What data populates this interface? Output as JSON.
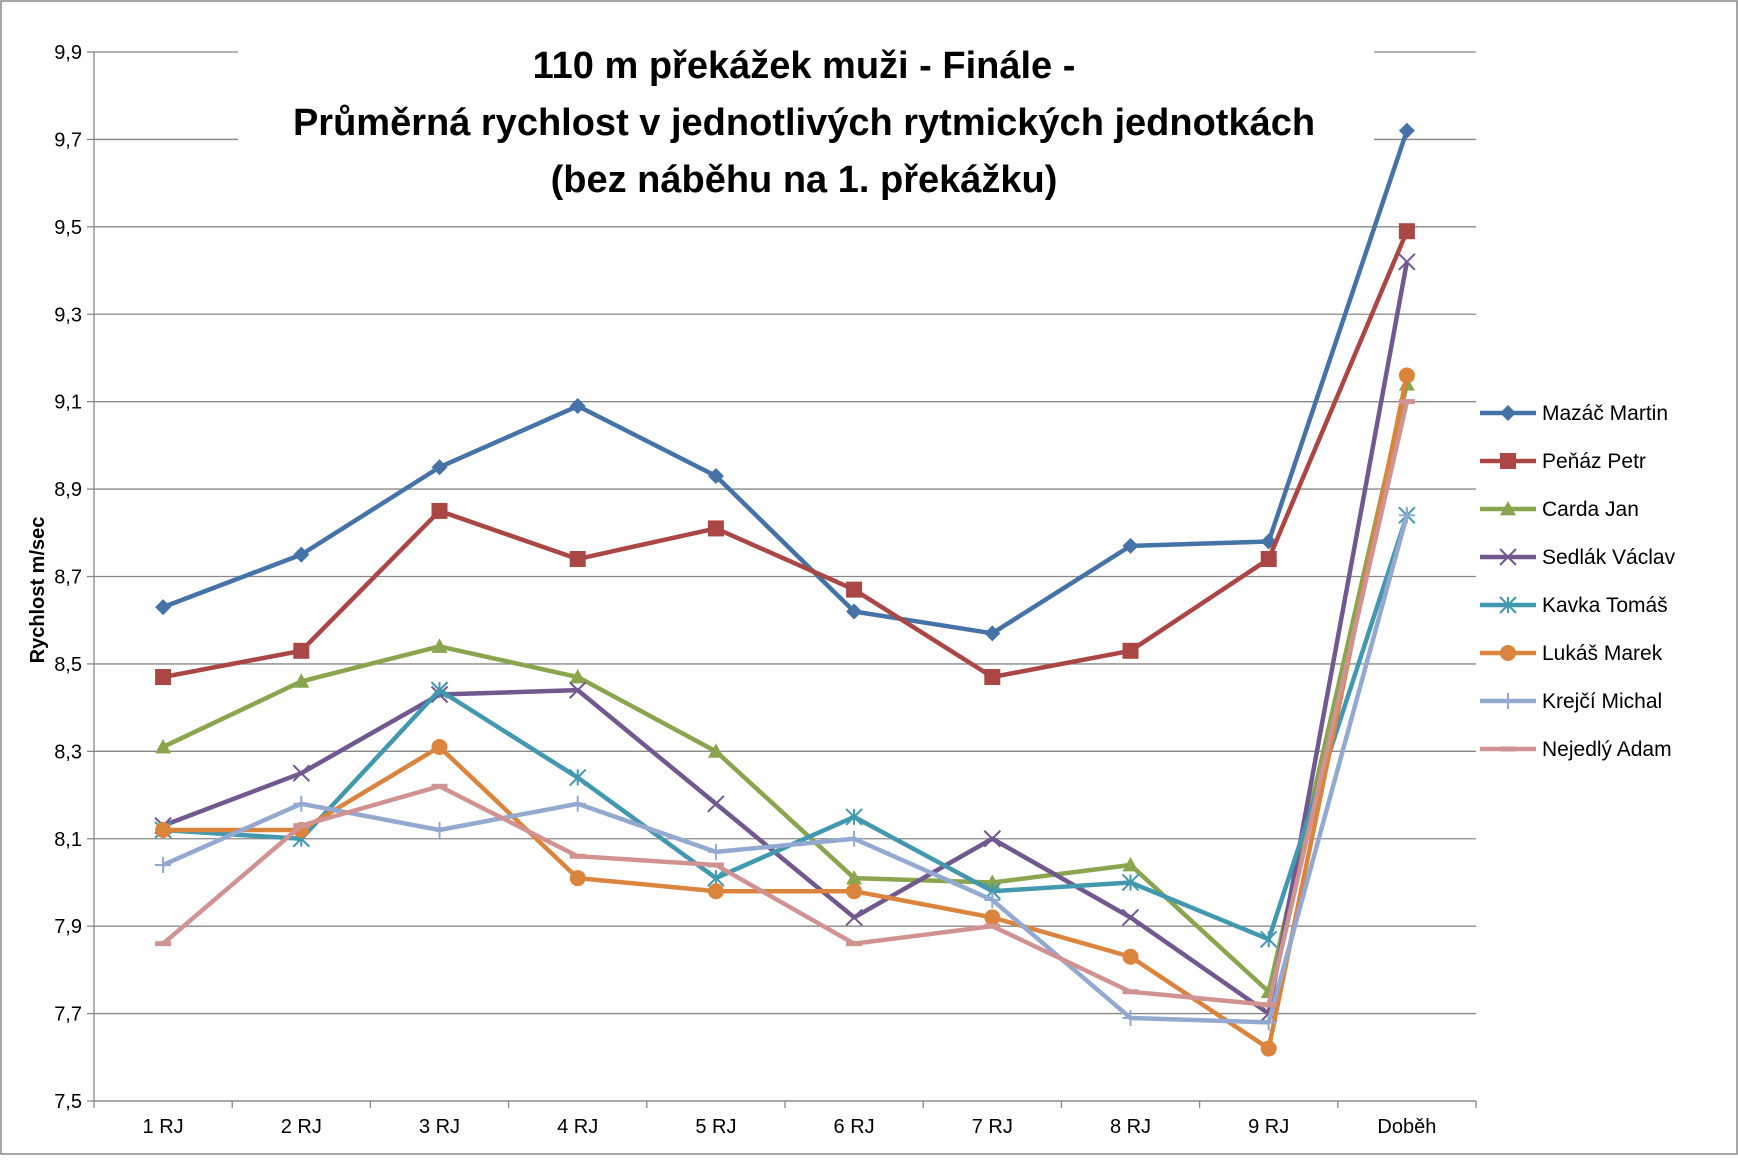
{
  "chart_data": {
    "type": "line",
    "title": [
      "110 m překážek muži - Finále -",
      "Průměrná rychlost v jednotlivých rytmických jednotkách",
      "(bez náběhu na 1. překážku)"
    ],
    "y_label": "Rychlost m/sec",
    "categories": [
      "1 RJ",
      "2 RJ",
      "3 RJ",
      "4 RJ",
      "5 RJ",
      "6 RJ",
      "7 RJ",
      "8 RJ",
      "9 RJ",
      "Doběh"
    ],
    "ylim": [
      7.5,
      9.9
    ],
    "yticks": [
      {
        "value": 7.5,
        "label": "7,5"
      },
      {
        "value": 7.7,
        "label": "7,7"
      },
      {
        "value": 7.9,
        "label": "7,9"
      },
      {
        "value": 8.1,
        "label": "8,1"
      },
      {
        "value": 8.3,
        "label": "8,3"
      },
      {
        "value": 8.5,
        "label": "8,5"
      },
      {
        "value": 8.7,
        "label": "8,7"
      },
      {
        "value": 8.9,
        "label": "8,9"
      },
      {
        "value": 9.1,
        "label": "9,1"
      },
      {
        "value": 9.3,
        "label": "9,3"
      },
      {
        "value": 9.5,
        "label": "9,5"
      },
      {
        "value": 9.7,
        "label": "9,7"
      },
      {
        "value": 9.9,
        "label": "9,9"
      }
    ],
    "grid": true,
    "legend": "right",
    "series": [
      {
        "name": "Mazáč Martin",
        "color": "#4572A7",
        "marker": "diamond",
        "values": [
          8.63,
          8.75,
          8.95,
          9.09,
          8.93,
          8.62,
          8.57,
          8.77,
          8.78,
          9.72
        ]
      },
      {
        "name": "Peňáz Petr",
        "color": "#AA4643",
        "marker": "square",
        "values": [
          8.47,
          8.53,
          8.85,
          8.74,
          8.81,
          8.67,
          8.47,
          8.53,
          8.74,
          9.49
        ]
      },
      {
        "name": "Carda Jan",
        "color": "#89A54E",
        "marker": "triangle",
        "values": [
          8.31,
          8.46,
          8.54,
          8.47,
          8.3,
          8.01,
          8.0,
          8.04,
          7.75,
          9.14
        ]
      },
      {
        "name": "Sedlák Václav",
        "color": "#71588F",
        "marker": "x",
        "values": [
          8.13,
          8.25,
          8.43,
          8.44,
          8.18,
          7.92,
          8.1,
          7.92,
          7.7,
          9.42
        ]
      },
      {
        "name": "Kavka Tomáš",
        "color": "#4198AF",
        "marker": "star",
        "values": [
          8.12,
          8.1,
          8.44,
          8.24,
          8.01,
          8.15,
          7.98,
          8.0,
          7.87,
          8.84
        ]
      },
      {
        "name": "Lukáš Marek",
        "color": "#DB843D",
        "marker": "circle",
        "values": [
          8.12,
          8.12,
          8.31,
          8.01,
          7.98,
          7.98,
          7.92,
          7.83,
          7.62,
          9.16
        ]
      },
      {
        "name": "Krejčí Michal",
        "color": "#93A9CF",
        "marker": "plus",
        "values": [
          8.04,
          8.18,
          8.12,
          8.18,
          8.07,
          8.1,
          7.96,
          7.69,
          7.68,
          8.84
        ]
      },
      {
        "name": "Nejedlý Adam",
        "color": "#D19392",
        "marker": "dash",
        "values": [
          7.86,
          8.13,
          8.22,
          8.06,
          8.04,
          7.86,
          7.9,
          7.75,
          7.72,
          9.1
        ]
      }
    ]
  }
}
